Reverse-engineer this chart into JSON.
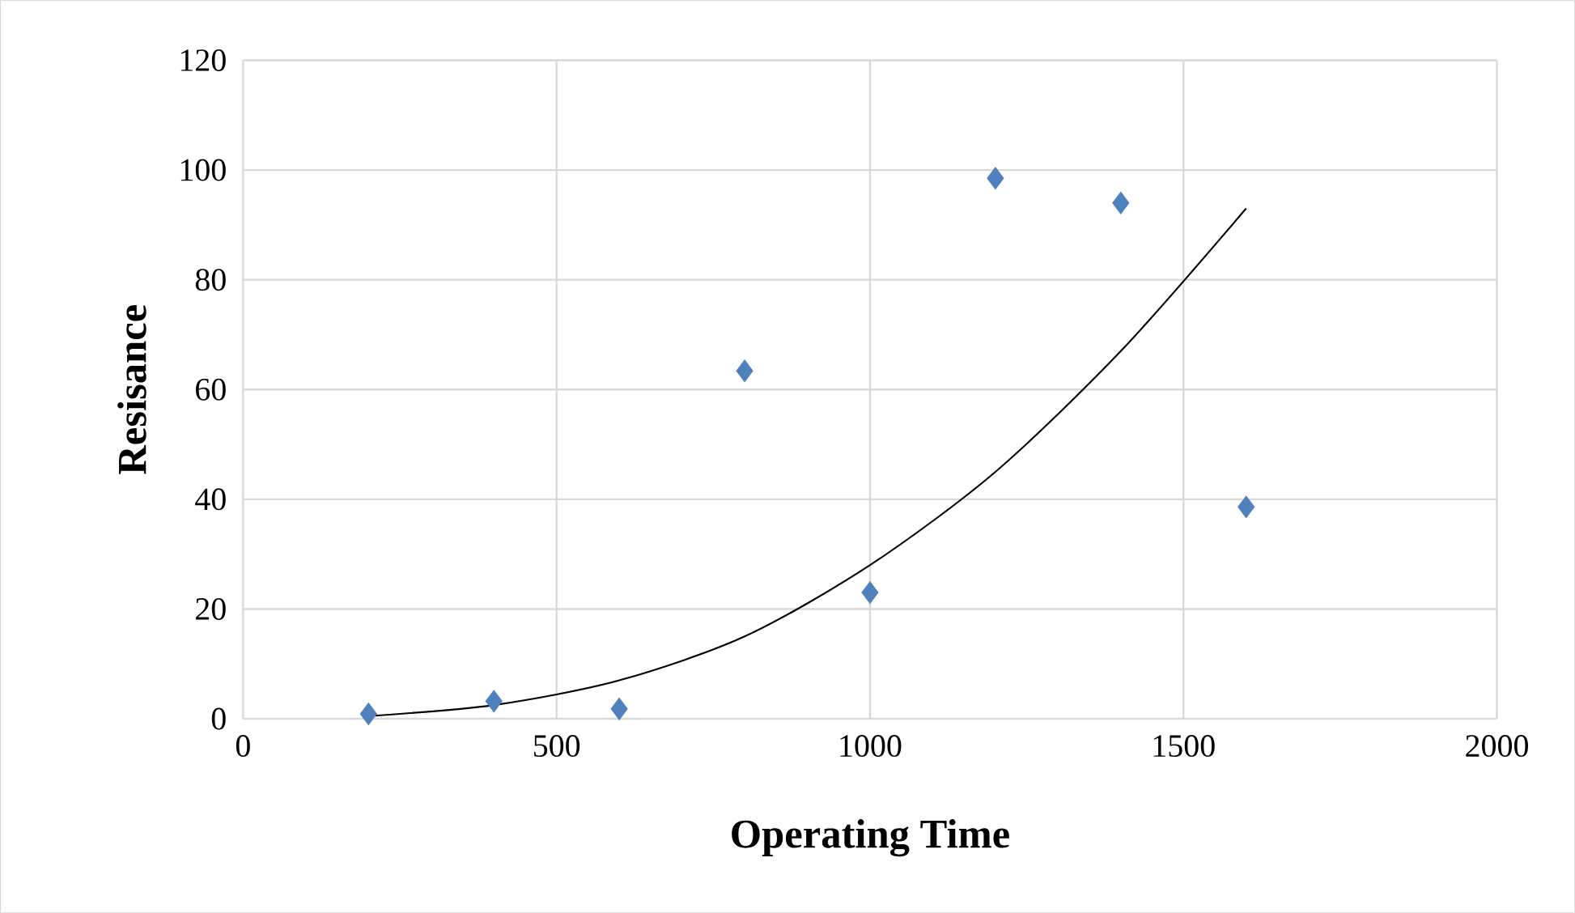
{
  "chart_data": {
    "type": "scatter",
    "xlabel": "Operating Time",
    "ylabel": "Resisance",
    "xlim": [
      0,
      2000
    ],
    "ylim": [
      0,
      120
    ],
    "xticks": [
      0,
      500,
      1000,
      1500,
      2000
    ],
    "yticks": [
      0,
      20,
      40,
      60,
      80,
      100,
      120
    ],
    "grid": true,
    "series": [
      {
        "marker": "diamond",
        "color": "#4f81bd",
        "x": [
          200,
          400,
          600,
          800,
          1000,
          1200,
          1400,
          1600
        ],
        "values": [
          0.9,
          3.2,
          1.8,
          63.4,
          23,
          98.5,
          94,
          38.6
        ]
      },
      {
        "type": "line",
        "marker": "none",
        "line_style": "solid",
        "color": "#000000",
        "x": [
          200,
          400,
          600,
          800,
          1000,
          1200,
          1400,
          1600
        ],
        "values": [
          0.5,
          2.5,
          7,
          15,
          28,
          45,
          67,
          93
        ]
      }
    ]
  }
}
